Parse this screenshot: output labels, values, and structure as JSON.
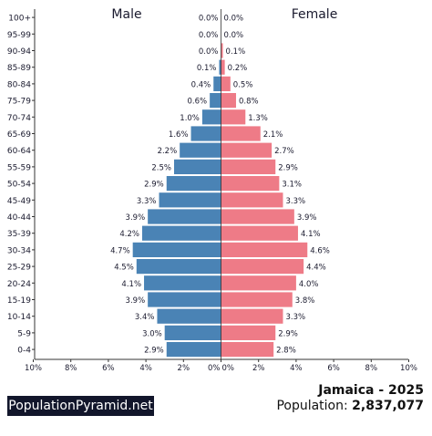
{
  "branding": {
    "site_name": "PopulationPyramid.net"
  },
  "summary": {
    "country_year": "Jamaica - 2025",
    "population_label": "Population:",
    "population_value": "2,837,077"
  },
  "chart_data": {
    "type": "bar",
    "orientation": "horizontal-pyramid",
    "categories": [
      "100+",
      "95-99",
      "90-94",
      "85-89",
      "80-84",
      "75-79",
      "70-74",
      "65-69",
      "60-64",
      "55-59",
      "50-54",
      "45-49",
      "40-44",
      "35-39",
      "30-34",
      "25-29",
      "20-24",
      "15-19",
      "10-14",
      "5-9",
      "0-4"
    ],
    "series": [
      {
        "name": "Male",
        "color": "#4a83b5",
        "values": [
          0.0,
          0.0,
          0.0,
          0.1,
          0.4,
          0.6,
          1.0,
          1.6,
          2.2,
          2.5,
          2.9,
          3.3,
          3.9,
          4.2,
          4.7,
          4.5,
          4.1,
          3.9,
          3.4,
          3.0,
          2.9
        ],
        "labels": [
          "0.0%",
          "0.0%",
          "0.0%",
          "0.1%",
          "0.4%",
          "0.6%",
          "1.0%",
          "1.6%",
          "2.2%",
          "2.5%",
          "2.9%",
          "3.3%",
          "3.9%",
          "4.2%",
          "4.7%",
          "4.5%",
          "4.1%",
          "3.9%",
          "3.4%",
          "3.0%",
          "2.9%"
        ]
      },
      {
        "name": "Female",
        "color": "#ee7b87",
        "values": [
          0.0,
          0.0,
          0.1,
          0.2,
          0.5,
          0.8,
          1.3,
          2.1,
          2.7,
          2.9,
          3.1,
          3.3,
          3.9,
          4.1,
          4.6,
          4.4,
          4.0,
          3.8,
          3.3,
          2.9,
          2.8
        ],
        "labels": [
          "0.0%",
          "0.0%",
          "0.1%",
          "0.2%",
          "0.5%",
          "0.8%",
          "1.3%",
          "2.1%",
          "2.7%",
          "2.9%",
          "3.1%",
          "3.3%",
          "3.9%",
          "4.1%",
          "4.6%",
          "4.4%",
          "4.0%",
          "3.8%",
          "3.3%",
          "2.9%",
          "2.8%"
        ]
      }
    ],
    "xlim": [
      0,
      10
    ],
    "left_ticks": [
      "10%",
      "8%",
      "6%",
      "4%",
      "2%",
      "0%"
    ],
    "right_ticks": [
      "0%",
      "2%",
      "4%",
      "6%",
      "8%",
      "10%"
    ],
    "grid": false
  }
}
